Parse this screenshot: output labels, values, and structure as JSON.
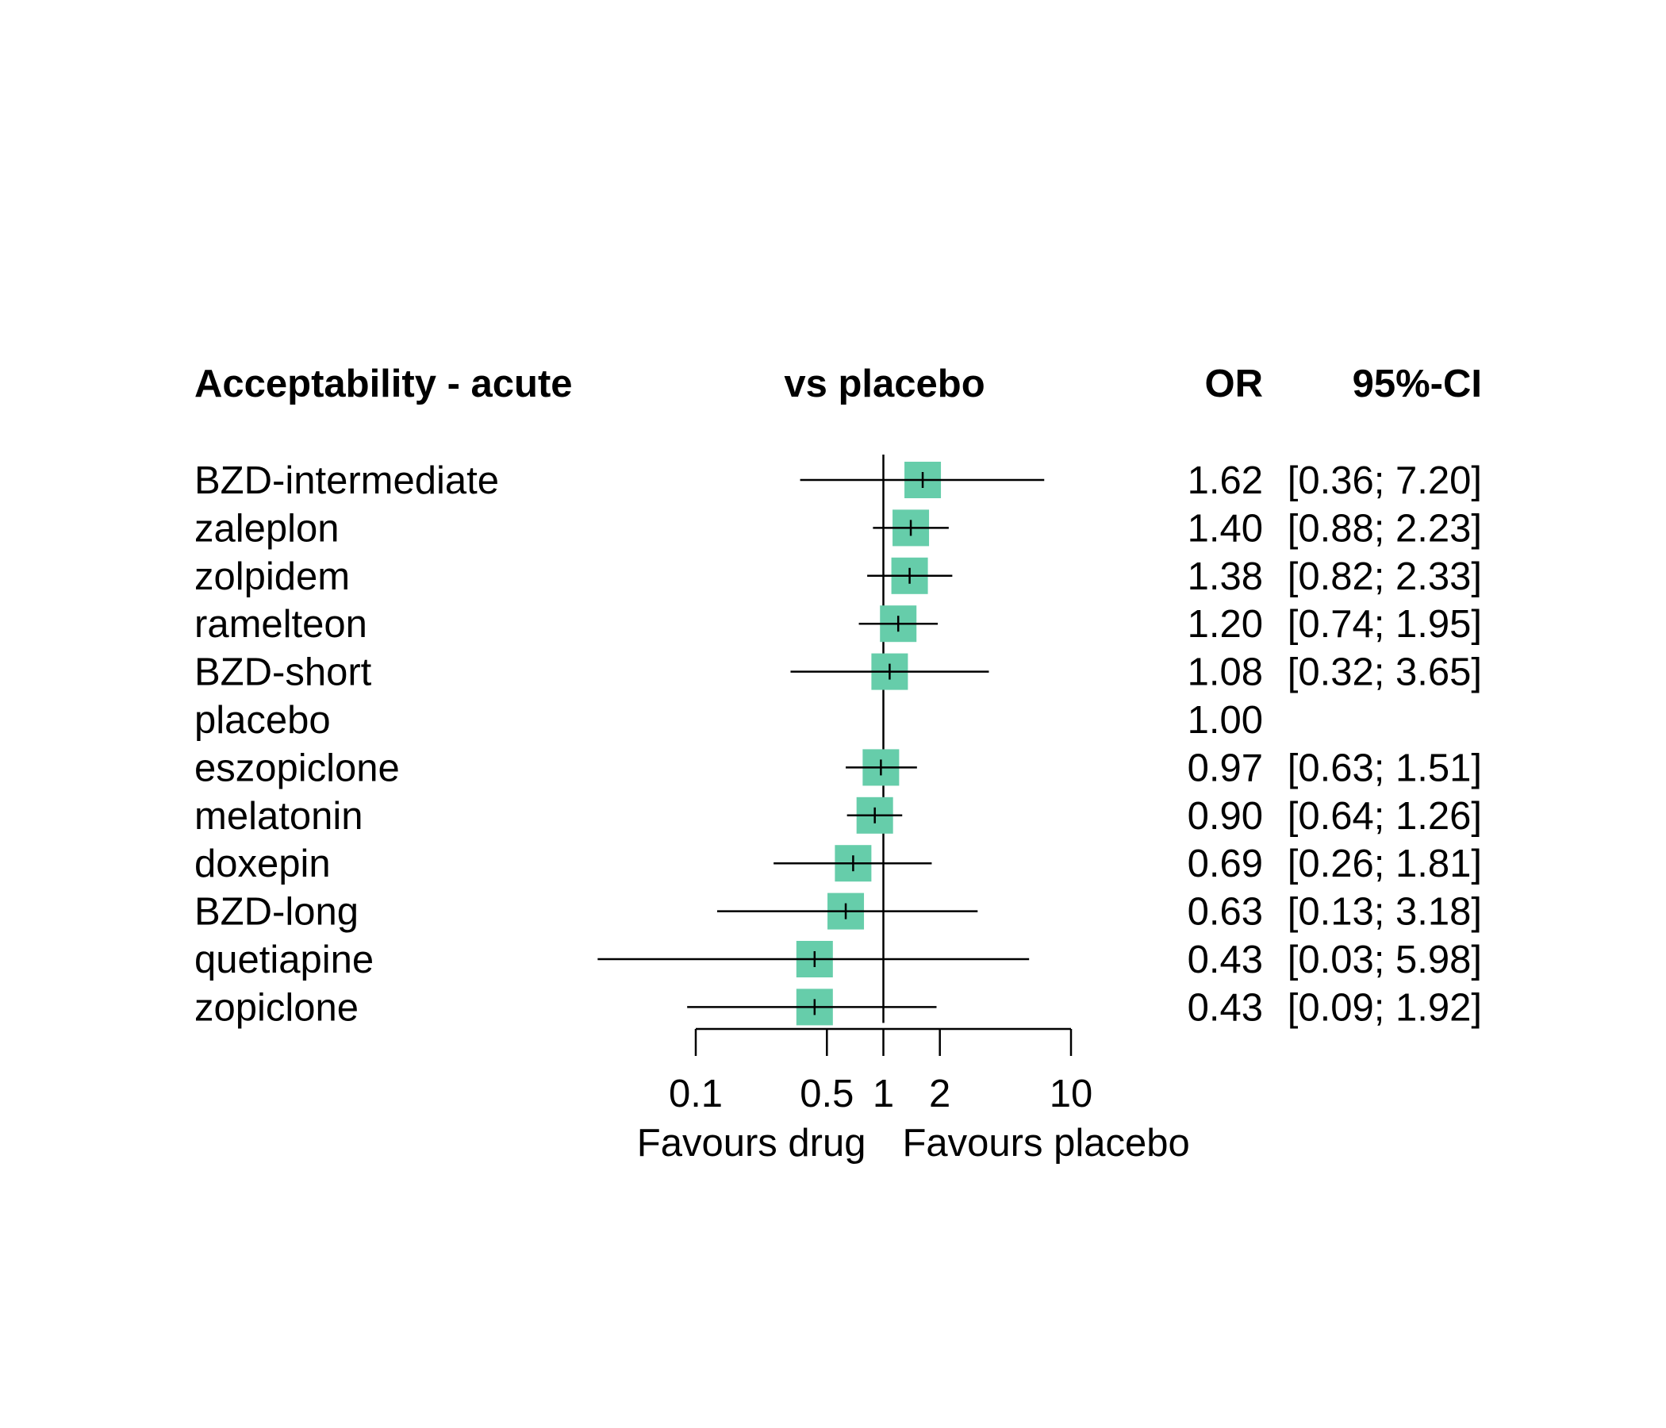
{
  "headers": {
    "title": "Acceptability - acute",
    "comparison": "vs placebo",
    "or": "OR",
    "ci": "95%-CI"
  },
  "chart_data": {
    "type": "forest",
    "scale": "log",
    "xlim": [
      0.1,
      10
    ],
    "reference_line": 1,
    "ticks": [
      {
        "value": 0.1,
        "label": "0.1"
      },
      {
        "value": 0.5,
        "label": "0.5"
      },
      {
        "value": 1,
        "label": "1"
      },
      {
        "value": 2,
        "label": "2"
      },
      {
        "value": 10,
        "label": "10"
      }
    ],
    "xlabel_left": "Favours drug",
    "xlabel_right": "Favours placebo",
    "marker_color": "#66cdaa",
    "rows": [
      {
        "name": "BZD-intermediate",
        "or": 1.62,
        "lower": 0.36,
        "upper": 7.2,
        "or_label": "1.62",
        "ci_label": "[0.36; 7.20]"
      },
      {
        "name": "zaleplon",
        "or": 1.4,
        "lower": 0.88,
        "upper": 2.23,
        "or_label": "1.40",
        "ci_label": "[0.88; 2.23]"
      },
      {
        "name": "zolpidem",
        "or": 1.38,
        "lower": 0.82,
        "upper": 2.33,
        "or_label": "1.38",
        "ci_label": "[0.82; 2.33]"
      },
      {
        "name": "ramelteon",
        "or": 1.2,
        "lower": 0.74,
        "upper": 1.95,
        "or_label": "1.20",
        "ci_label": "[0.74; 1.95]"
      },
      {
        "name": "BZD-short",
        "or": 1.08,
        "lower": 0.32,
        "upper": 3.65,
        "or_label": "1.08",
        "ci_label": "[0.32; 3.65]"
      },
      {
        "name": "placebo",
        "or": 1.0,
        "lower": null,
        "upper": null,
        "or_label": "1.00",
        "ci_label": ""
      },
      {
        "name": "eszopiclone",
        "or": 0.97,
        "lower": 0.63,
        "upper": 1.51,
        "or_label": "0.97",
        "ci_label": "[0.63; 1.51]"
      },
      {
        "name": "melatonin",
        "or": 0.9,
        "lower": 0.64,
        "upper": 1.26,
        "or_label": "0.90",
        "ci_label": "[0.64; 1.26]"
      },
      {
        "name": "doxepin",
        "or": 0.69,
        "lower": 0.26,
        "upper": 1.81,
        "or_label": "0.69",
        "ci_label": "[0.26; 1.81]"
      },
      {
        "name": "BZD-long",
        "or": 0.63,
        "lower": 0.13,
        "upper": 3.18,
        "or_label": "0.63",
        "ci_label": "[0.13; 3.18]"
      },
      {
        "name": "quetiapine",
        "or": 0.43,
        "lower": 0.03,
        "upper": 5.98,
        "or_label": "0.43",
        "ci_label": "[0.03; 5.98]"
      },
      {
        "name": "zopiclone",
        "or": 0.43,
        "lower": 0.09,
        "upper": 1.92,
        "or_label": "0.43",
        "ci_label": "[0.09; 1.92]"
      }
    ]
  }
}
